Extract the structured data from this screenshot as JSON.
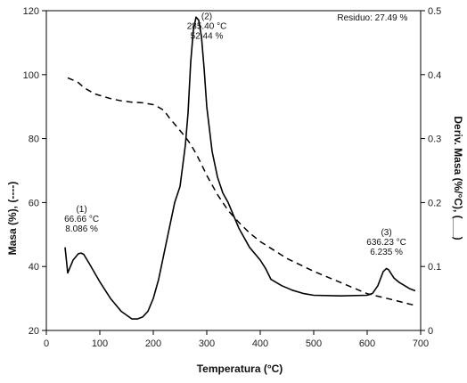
{
  "chart_data": {
    "type": "line",
    "title": "",
    "xlabel": "Temperatura (°C)",
    "ylabel_left": "Masa (%), (----)",
    "ylabel_right": "Deriv. Masa (%/°C), (___)",
    "xlim": [
      0,
      700
    ],
    "ylim_left": [
      20,
      120
    ],
    "ylim_right": [
      0,
      0.5
    ],
    "x_ticks": [
      0,
      100,
      200,
      300,
      400,
      500,
      600,
      700
    ],
    "y_left_ticks": [
      20,
      40,
      60,
      80,
      100,
      120
    ],
    "y_right_ticks": [
      0,
      0.1,
      0.2,
      0.3,
      0.4,
      0.5
    ],
    "grid": false,
    "series": [
      {
        "axis": "left",
        "style": "dashed",
        "color": "#000000",
        "x": [
          40,
          50,
          60,
          70,
          80,
          90,
          100,
          120,
          140,
          160,
          180,
          200,
          210,
          220,
          230,
          240,
          250,
          260,
          270,
          280,
          290,
          300,
          320,
          340,
          360,
          380,
          400,
          450,
          500,
          550,
          600,
          650,
          690
        ],
        "y": [
          99,
          98.3,
          97.5,
          96,
          95,
          94,
          93.5,
          92.5,
          91.8,
          91.4,
          91.2,
          90.6,
          89.8,
          88.8,
          86.5,
          84.5,
          82.5,
          80.5,
          78.2,
          75.3,
          72.0,
          68.5,
          62.5,
          57.5,
          53.8,
          50.5,
          47.8,
          42.5,
          38.5,
          35,
          31.5,
          29.5,
          27.8
        ]
      },
      {
        "axis": "right",
        "style": "solid",
        "color": "#000000",
        "x": [
          35,
          40,
          50,
          60,
          65,
          70,
          80,
          100,
          120,
          140,
          160,
          170,
          180,
          190,
          200,
          210,
          220,
          230,
          240,
          250,
          260,
          265,
          270,
          275,
          280,
          285,
          290,
          295,
          300,
          310,
          320,
          330,
          340,
          350,
          360,
          380,
          400,
          410,
          420,
          440,
          460,
          480,
          500,
          550,
          600,
          610,
          620,
          630,
          636,
          640,
          650,
          660,
          680,
          690
        ],
        "y": [
          0.13,
          0.09,
          0.11,
          0.12,
          0.121,
          0.119,
          0.105,
          0.076,
          0.05,
          0.03,
          0.018,
          0.018,
          0.021,
          0.03,
          0.05,
          0.08,
          0.12,
          0.16,
          0.2,
          0.225,
          0.29,
          0.34,
          0.42,
          0.47,
          0.49,
          0.485,
          0.46,
          0.41,
          0.35,
          0.28,
          0.24,
          0.215,
          0.2,
          0.18,
          0.16,
          0.13,
          0.11,
          0.097,
          0.08,
          0.07,
          0.063,
          0.058,
          0.055,
          0.054,
          0.055,
          0.058,
          0.07,
          0.092,
          0.097,
          0.095,
          0.082,
          0.075,
          0.065,
          0.062
        ]
      }
    ],
    "annotations": [
      {
        "lines": [
          "(1)",
          "66.66 °C",
          "8.086 %"
        ],
        "x": 66,
        "y_right": 0.185,
        "anchor": "middle"
      },
      {
        "lines": [
          "(2)",
          "285.40 °C",
          "52.44 %"
        ],
        "x": 300,
        "y_right": 0.487,
        "anchor": "middle"
      },
      {
        "lines": [
          "(3)",
          "636.23 °C",
          "6.235 %"
        ],
        "x": 636,
        "y_right": 0.149,
        "anchor": "middle"
      },
      {
        "lines": [
          "Residuo: 27.49 %"
        ],
        "x": 544,
        "y_right": 0.485,
        "anchor": "start"
      }
    ]
  }
}
